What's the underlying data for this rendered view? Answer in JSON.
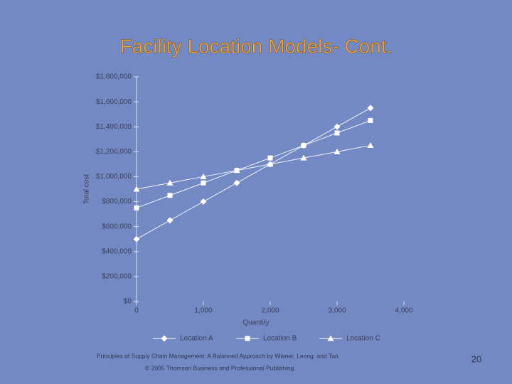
{
  "slide": {
    "title": "Facility Location Models- Cont.",
    "footer": [
      "Principles of Supply Chain Management: A Balanced Approach by Wisner, Leong, and Tan.",
      "© 2005 Thomson Business and Professional Publishing"
    ],
    "page_number": "20"
  },
  "chart_data": {
    "type": "line",
    "x_label": "Quantity",
    "y_label": "Total cost",
    "x": [
      0,
      500,
      1000,
      1500,
      2000,
      2500,
      3000,
      3500
    ],
    "series": [
      {
        "name": "Location A",
        "color": "#ffffff",
        "marker": "diamond",
        "values": [
          500000,
          650000,
          800000,
          950000,
          1100000,
          1250000,
          1400000,
          1550000
        ]
      },
      {
        "name": "Location B",
        "color": "#ffffff",
        "marker": "square",
        "values": [
          750000,
          850000,
          950000,
          1050000,
          1150000,
          1250000,
          1350000,
          1450000
        ]
      },
      {
        "name": "Location C",
        "color": "#ffffff",
        "marker": "triangle",
        "values": [
          900000,
          950000,
          1000000,
          1050000,
          1100000,
          1150000,
          1200000,
          1250000
        ]
      }
    ],
    "xlim": [
      0,
      4000
    ],
    "xticks": [
      0,
      {
        "value": 1000,
        "label": "1,000"
      },
      {
        "value": 2000,
        "label": "2,000"
      },
      {
        "value": 3000,
        "label": "3,000"
      },
      {
        "value": 4000,
        "label": "4,000"
      }
    ],
    "ylim": [
      0,
      1800000
    ],
    "yticks": [
      {
        "value": 0,
        "label": "$0"
      },
      {
        "value": 200000,
        "label": "$200,000"
      },
      {
        "value": 400000,
        "label": "$400,000"
      },
      {
        "value": 600000,
        "label": "$600,000"
      },
      {
        "value": 800000,
        "label": "$800,000"
      },
      {
        "value": 1000000,
        "label": "$1,000,000"
      },
      {
        "value": 1200000,
        "label": "$1,200,000"
      },
      {
        "value": 1400000,
        "label": "$1,400,000"
      },
      {
        "value": 1600000,
        "label": "$1,600,000"
      },
      {
        "value": 1800000,
        "label": "$1,800,000"
      }
    ],
    "legend": "bottom"
  }
}
